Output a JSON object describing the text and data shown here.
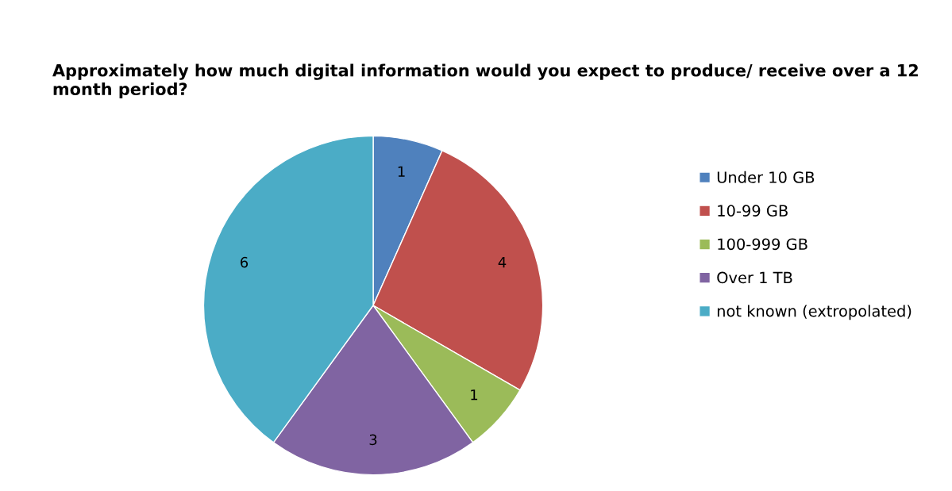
{
  "chart_data": {
    "type": "pie",
    "title": "Approximately how much digital information would you expect to produce/ receive over a 12 month period?",
    "categories": [
      "Under 10 GB",
      "10-99 GB",
      "100-999 GB",
      "Over 1 TB",
      "not known (extropolated)"
    ],
    "values": [
      1,
      4,
      1,
      3,
      6
    ],
    "colors": [
      "#4f81bd",
      "#c0504d",
      "#9bbb59",
      "#8064a2",
      "#4bacc6"
    ],
    "data_labels": true,
    "legend": "right"
  }
}
